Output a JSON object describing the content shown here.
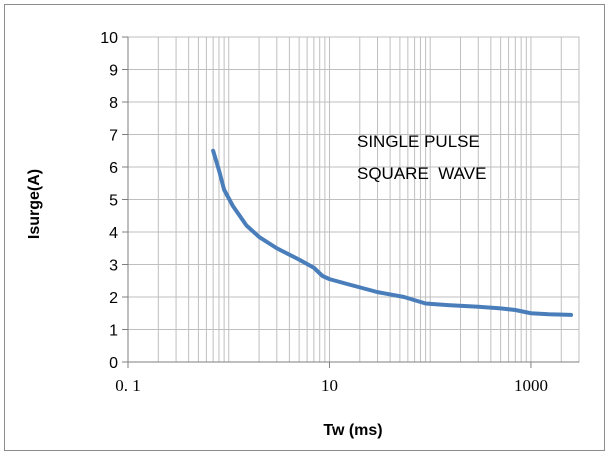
{
  "chart_data": {
    "type": "line",
    "xscale": "log",
    "xlabel": "Tw (ms)",
    "ylabel": "Isurge(A)",
    "xlim": [
      0.1,
      3000
    ],
    "ylim": [
      0,
      10
    ],
    "yticks": [
      "0",
      "1",
      "2",
      "3",
      "4",
      "5",
      "6",
      "7",
      "8",
      "9",
      "10"
    ],
    "xticks": [
      {
        "value": 0.1,
        "label": "0. 1"
      },
      {
        "value": 10,
        "label": "10"
      },
      {
        "value": 1000,
        "label": "1000"
      }
    ],
    "grid": true,
    "annotations": [
      "SINGLE PULSE",
      "SQUARE  WAVE"
    ],
    "series": [
      {
        "color": "#4a7ebb",
        "x": [
          0.7,
          0.8,
          0.9,
          1.1,
          1.5,
          2,
          3,
          5,
          7,
          8.5,
          10,
          15,
          30,
          55,
          90,
          150,
          300,
          500,
          700,
          1000,
          1500,
          2500
        ],
        "y": [
          6.5,
          5.9,
          5.3,
          4.8,
          4.2,
          3.85,
          3.5,
          3.15,
          2.9,
          2.65,
          2.55,
          2.4,
          2.15,
          2.0,
          1.8,
          1.75,
          1.7,
          1.65,
          1.6,
          1.5,
          1.47,
          1.45
        ]
      }
    ]
  }
}
